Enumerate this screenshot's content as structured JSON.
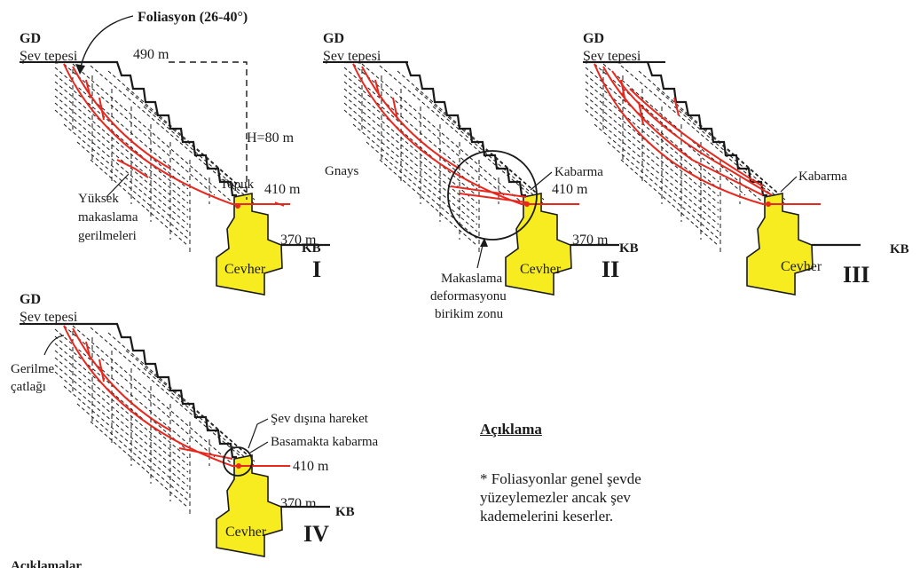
{
  "colors": {
    "fault": "#e8281e",
    "ore": "#f7ec1f",
    "ink": "#1a1a1a"
  },
  "foliation_label": "Foliasyon (26-40°)",
  "panels": [
    {
      "id": "I",
      "roman": "I",
      "gd": "GD",
      "crest": "Şev tepesi",
      "kb": "KB",
      "ore": "Cevher",
      "levels": {
        "top": "490 m",
        "toe": "410 m",
        "bottom": "370 m"
      },
      "height": "H=80 m",
      "toe_label": "Topuk",
      "stress": [
        "Yüksek",
        "makaslama",
        "gerilmeleri"
      ]
    },
    {
      "id": "II",
      "roman": "II",
      "gd": "GD",
      "crest": "Şev tepesi",
      "kb": "KB",
      "ore": "Cevher",
      "levels": {
        "toe": "410 m",
        "bottom": "370 m"
      },
      "gneiss": "Gnays",
      "bulge": "Kabarma",
      "zone": [
        "Makaslama",
        "deformasyonu",
        "birikim zonu"
      ]
    },
    {
      "id": "III",
      "roman": "III",
      "gd": "GD",
      "crest": "Şev tepesi",
      "kb": "KB",
      "ore": "Cevher",
      "bulge": "Kabarma"
    },
    {
      "id": "IV",
      "roman": "IV",
      "gd": "GD",
      "crest": "Şev tepesi",
      "kb": "KB",
      "ore": "Cevher",
      "levels": {
        "toe": "410 m",
        "bottom": "370 m"
      },
      "crack": [
        "Gerilme",
        "çatlağı"
      ],
      "movement": "Şev dışına hareket",
      "step_bulge": "Basamakta kabarma"
    }
  ],
  "legend": {
    "heading": "Açıklama",
    "text": [
      "* Foliasyonlar genel şevde",
      "yüzeylemezler ancak şev",
      "kademelerini keserler."
    ]
  },
  "footer_heading": "Açıklamalar"
}
